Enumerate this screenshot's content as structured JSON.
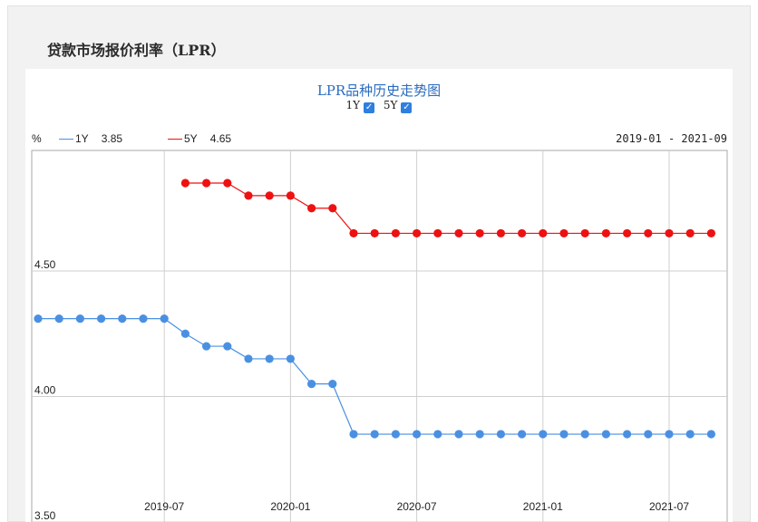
{
  "page": {
    "title": "贷款市场报价利率（LPR）"
  },
  "chart_controls": {
    "toggles": [
      {
        "label": "1Y",
        "checked": true
      },
      {
        "label": "5Y",
        "checked": true
      }
    ],
    "check_glyph": "✓"
  },
  "chart_data": {
    "type": "line",
    "title": "LPR品种历史走势图",
    "unit_label": "%",
    "date_range": "2019-01 - 2021-09",
    "x_ticks": [
      "2019-07",
      "2020-01",
      "2020-07",
      "2021-01",
      "2021-07"
    ],
    "y_ticks": [
      "3.50",
      "4.00",
      "4.50"
    ],
    "ylim": [
      3.5,
      4.98
    ],
    "x_start": "2019-01",
    "x_end": "2021-09",
    "series": [
      {
        "name": "1Y",
        "latest": "3.85",
        "color": "#4a90e2",
        "start": "2019-01",
        "values": [
          4.31,
          4.31,
          4.31,
          4.31,
          4.31,
          4.31,
          4.31,
          4.25,
          4.2,
          4.2,
          4.15,
          4.15,
          4.15,
          4.05,
          4.05,
          3.85,
          3.85,
          3.85,
          3.85,
          3.85,
          3.85,
          3.85,
          3.85,
          3.85,
          3.85,
          3.85,
          3.85,
          3.85,
          3.85,
          3.85,
          3.85,
          3.85,
          3.85
        ]
      },
      {
        "name": "5Y",
        "latest": "4.65",
        "color": "#ee1111",
        "start": "2019-08",
        "values": [
          4.85,
          4.85,
          4.85,
          4.8,
          4.8,
          4.8,
          4.75,
          4.75,
          4.65,
          4.65,
          4.65,
          4.65,
          4.65,
          4.65,
          4.65,
          4.65,
          4.65,
          4.65,
          4.65,
          4.65,
          4.65,
          4.65,
          4.65,
          4.65,
          4.65,
          4.65
        ]
      }
    ],
    "colors": {
      "grid": "#cfcfcf",
      "frame": "#a8a8a8"
    }
  }
}
